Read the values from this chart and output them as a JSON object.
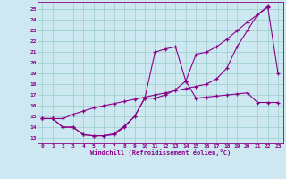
{
  "xlabel": "Windchill (Refroidissement éolien,°C)",
  "bg_color": "#cde8f0",
  "line_color": "#880088",
  "grid_color": "#99cccc",
  "x_ticks": [
    0,
    1,
    2,
    3,
    4,
    5,
    6,
    7,
    8,
    9,
    10,
    11,
    12,
    13,
    14,
    15,
    16,
    17,
    18,
    19,
    20,
    21,
    22,
    23
  ],
  "y_ticks": [
    13,
    14,
    15,
    16,
    17,
    18,
    19,
    20,
    21,
    22,
    23,
    24,
    25
  ],
  "xlim": [
    -0.5,
    23.5
  ],
  "ylim": [
    12.5,
    25.7
  ],
  "line1_x": [
    0,
    1,
    2,
    3,
    4,
    5,
    6,
    7,
    8,
    9,
    10,
    11,
    12,
    13,
    14,
    15,
    16,
    17,
    18,
    19,
    20,
    21,
    22
  ],
  "line1_y": [
    14.8,
    14.8,
    14.8,
    15.2,
    15.5,
    15.8,
    16.0,
    16.2,
    16.4,
    16.6,
    16.8,
    17.0,
    17.2,
    17.4,
    17.6,
    17.8,
    18.0,
    18.5,
    19.5,
    21.5,
    23.0,
    24.5,
    25.3
  ],
  "line2_x": [
    0,
    1,
    2,
    3,
    4,
    5,
    6,
    7,
    8,
    9,
    10,
    11,
    12,
    13,
    14,
    15,
    16,
    17,
    18,
    19,
    20,
    22,
    23
  ],
  "line2_y": [
    14.8,
    14.8,
    14.0,
    14.0,
    13.3,
    13.2,
    13.2,
    13.4,
    14.1,
    15.0,
    16.7,
    21.0,
    21.3,
    21.5,
    18.3,
    20.8,
    21.0,
    21.5,
    22.2,
    23.0,
    23.8,
    25.2,
    19.0
  ],
  "line3_x": [
    0,
    1,
    2,
    3,
    4,
    5,
    6,
    7,
    8,
    9,
    10,
    11,
    12,
    13,
    14,
    15,
    16,
    17,
    18,
    19,
    20,
    21,
    22,
    23
  ],
  "line3_y": [
    14.8,
    14.8,
    14.0,
    14.0,
    13.3,
    13.2,
    13.2,
    13.3,
    14.0,
    15.0,
    16.7,
    16.7,
    17.0,
    17.5,
    18.3,
    16.7,
    16.8,
    16.9,
    17.0,
    17.1,
    17.2,
    16.3,
    16.3,
    16.3
  ]
}
